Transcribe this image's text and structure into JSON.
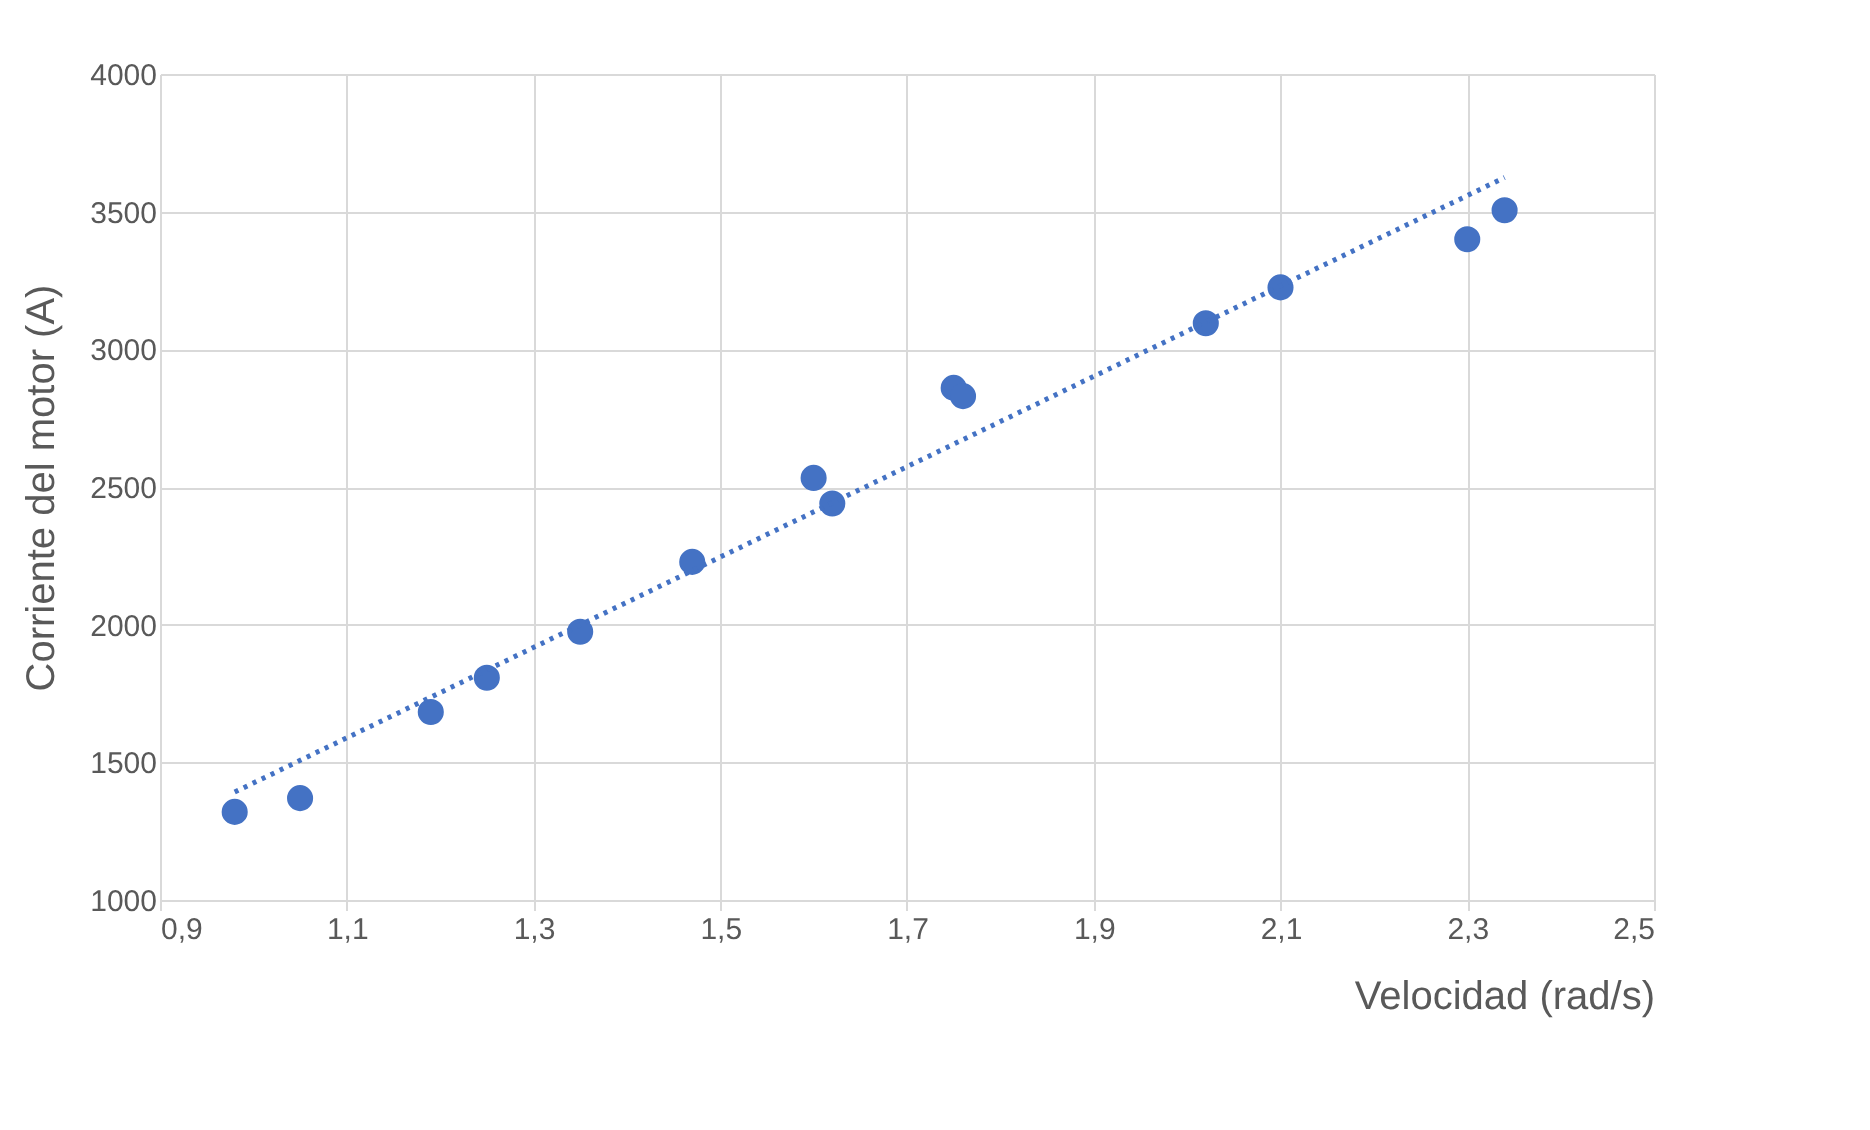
{
  "chart_data": {
    "type": "scatter",
    "xlabel": "Velocidad (rad/s)",
    "ylabel": "Corriente del motor (A)",
    "x": [
      0.98,
      1.05,
      1.19,
      1.25,
      1.35,
      1.47,
      1.6,
      1.62,
      1.75,
      1.76,
      2.02,
      2.1,
      2.3,
      2.34
    ],
    "series": [
      {
        "color": "#4472c4",
        "values": [
          1320,
          1370,
          1683,
          1807,
          1974,
          2228,
          2533,
          2440,
          2860,
          2830,
          3095,
          3225,
          3400,
          3505
        ],
        "marker": "circle"
      },
      {
        "type": "line",
        "color": "#4472c4",
        "x": [
          0.98,
          2.34
        ],
        "values": [
          1392,
          3624
        ],
        "line_style": "dotted",
        "marker": "none"
      }
    ],
    "xlim": [
      0.9,
      2.5
    ],
    "xticks": [
      {
        "value": 0.9,
        "label": "0,9"
      },
      {
        "value": 1.1,
        "label": "1,1"
      },
      {
        "value": 1.3,
        "label": "1,3"
      },
      {
        "value": 1.5,
        "label": "1,5"
      },
      {
        "value": 1.7,
        "label": "1,7"
      },
      {
        "value": 1.9,
        "label": "1,9"
      },
      {
        "value": 2.1,
        "label": "2,1"
      },
      {
        "value": 2.3,
        "label": "2,3"
      },
      {
        "value": 2.5,
        "label": "2,5"
      }
    ],
    "ylim": [
      1000,
      4000
    ],
    "yticks": [
      1000,
      1500,
      2000,
      2500,
      3000,
      3500,
      4000
    ],
    "grid": true
  }
}
